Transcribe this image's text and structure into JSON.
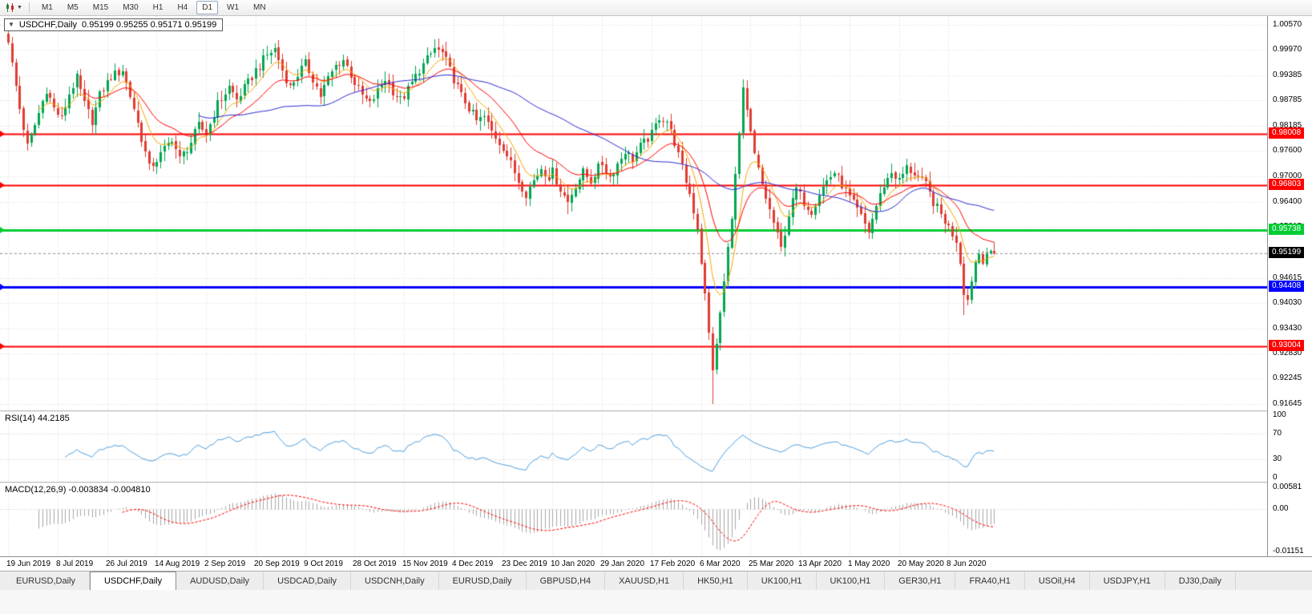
{
  "toolbar": {
    "timeframes": [
      "M1",
      "M5",
      "M15",
      "M30",
      "H1",
      "H4",
      "D1",
      "W1",
      "MN"
    ],
    "active_timeframe": "D1"
  },
  "chart_header": {
    "symbol_period": "USDCHF,Daily",
    "ohlc_text": "0.95199 0.95255 0.95171 0.95199"
  },
  "chart_data": {
    "type": "candlestick",
    "symbol": "USDCHF",
    "period": "Daily",
    "ohlc": {
      "open": "0.95199",
      "high": "0.95255",
      "low": "0.95171",
      "close": "0.95199"
    },
    "current_price": {
      "value": 0.95199,
      "label": "0.95199",
      "color": "#000000"
    },
    "price_range": {
      "min": 0.915,
      "max": 1.0077
    },
    "price_ticks": [
      "1.00570",
      "0.99970",
      "0.99385",
      "0.98785",
      "0.98185",
      "0.97600",
      "0.97000",
      "0.96400",
      "0.95815",
      "0.95215",
      "0.94615",
      "0.94030",
      "0.93430",
      "0.92830",
      "0.92245",
      "0.91645"
    ],
    "hlines": [
      {
        "price": 0.98008,
        "label": "0.98008",
        "color": "#FF0000",
        "width": 2
      },
      {
        "price": 0.96803,
        "label": "0.96803",
        "color": "#FF0000",
        "width": 2
      },
      {
        "price": 0.95738,
        "label": "0.95738",
        "color": "#00CC33",
        "width": 3
      },
      {
        "price": 0.94408,
        "label": "0.94408",
        "color": "#0000FF",
        "width": 3
      },
      {
        "price": 0.93004,
        "label": "0.93004",
        "color": "#FF0000",
        "width": 2
      }
    ],
    "date_labels": [
      "19 Jun 2019",
      "8 Jul 2019",
      "26 Jul 2019",
      "14 Aug 2019",
      "2 Sep 2019",
      "20 Sep 2019",
      "9 Oct 2019",
      "28 Oct 2019",
      "15 Nov 2019",
      "4 Dec 2019",
      "23 Dec 2019",
      "10 Jan 2020",
      "29 Jan 2020",
      "17 Feb 2020",
      "6 Mar 2020",
      "25 Mar 2020",
      "13 Apr 2020",
      "1 May 2020",
      "20 May 2020",
      "8 Jun 2020"
    ],
    "candles": {
      "count": 260,
      "waypoints": [
        [
          0,
          1.0015
        ],
        [
          3,
          0.986
        ],
        [
          5,
          0.977
        ],
        [
          7,
          0.982
        ],
        [
          10,
          0.9905
        ],
        [
          12,
          0.986
        ],
        [
          14,
          0.9835
        ],
        [
          16,
          0.9895
        ],
        [
          18,
          0.993
        ],
        [
          20,
          0.987
        ],
        [
          22,
          0.983
        ],
        [
          24,
          0.989
        ],
        [
          27,
          0.9935
        ],
        [
          30,
          0.995
        ],
        [
          33,
          0.986
        ],
        [
          35,
          0.979
        ],
        [
          37,
          0.972
        ],
        [
          40,
          0.975
        ],
        [
          43,
          0.979
        ],
        [
          45,
          0.974
        ],
        [
          48,
          0.978
        ],
        [
          50,
          0.982
        ],
        [
          52,
          0.98
        ],
        [
          55,
          0.987
        ],
        [
          58,
          0.991
        ],
        [
          60,
          0.988
        ],
        [
          63,
          0.992
        ],
        [
          65,
          0.995
        ],
        [
          68,
          0.9985
        ],
        [
          70,
          1.0
        ],
        [
          72,
          0.995
        ],
        [
          74,
          0.991
        ],
        [
          76,
          0.994
        ],
        [
          78,
          0.9965
        ],
        [
          80,
          0.993
        ],
        [
          82,
          0.989
        ],
        [
          84,
          0.993
        ],
        [
          86,
          0.996
        ],
        [
          88,
          0.9975
        ],
        [
          90,
          0.994
        ],
        [
          91,
          0.992
        ],
        [
          93,
          0.989
        ],
        [
          95,
          0.987
        ],
        [
          97,
          0.99
        ],
        [
          99,
          0.993
        ],
        [
          101,
          0.99
        ],
        [
          103,
          0.988
        ],
        [
          104,
          0.989
        ],
        [
          106,
          0.992
        ],
        [
          108,
          0.995
        ],
        [
          110,
          0.9975
        ],
        [
          112,
          1.0
        ],
        [
          114,
          0.999
        ],
        [
          116,
          0.995
        ],
        [
          117,
          0.993
        ],
        [
          119,
          0.989
        ],
        [
          121,
          0.986
        ],
        [
          123,
          0.983
        ],
        [
          125,
          0.984
        ],
        [
          127,
          0.9805
        ],
        [
          129,
          0.978
        ],
        [
          130,
          0.977
        ],
        [
          132,
          0.973
        ],
        [
          134,
          0.969
        ],
        [
          136,
          0.966
        ],
        [
          138,
          0.969
        ],
        [
          140,
          0.972
        ],
        [
          142,
          0.97
        ],
        [
          143,
          0.971
        ],
        [
          145,
          0.967
        ],
        [
          147,
          0.964
        ],
        [
          149,
          0.968
        ],
        [
          151,
          0.971
        ],
        [
          153,
          0.969
        ],
        [
          155,
          0.972
        ],
        [
          156,
          0.973
        ],
        [
          158,
          0.97
        ],
        [
          160,
          0.973
        ],
        [
          162,
          0.976
        ],
        [
          164,
          0.974
        ],
        [
          166,
          0.977
        ],
        [
          168,
          0.979
        ],
        [
          169,
          0.98
        ],
        [
          171,
          0.984
        ],
        [
          173,
          0.983
        ],
        [
          175,
          0.978
        ],
        [
          177,
          0.972
        ],
        [
          179,
          0.966
        ],
        [
          181,
          0.958
        ],
        [
          182,
          0.95
        ],
        [
          183,
          0.942
        ],
        [
          184,
          0.933
        ],
        [
          185,
          0.925
        ],
        [
          186,
          0.93
        ],
        [
          187,
          0.938
        ],
        [
          188,
          0.945
        ],
        [
          189,
          0.953
        ],
        [
          190,
          0.961
        ],
        [
          191,
          0.97
        ],
        [
          192,
          0.98
        ],
        [
          193,
          0.99
        ],
        [
          194,
          0.985
        ],
        [
          196,
          0.975
        ],
        [
          198,
          0.968
        ],
        [
          200,
          0.962
        ],
        [
          203,
          0.953
        ],
        [
          205,
          0.961
        ],
        [
          207,
          0.967
        ],
        [
          209,
          0.964
        ],
        [
          211,
          0.962
        ],
        [
          213,
          0.966
        ],
        [
          215,
          0.969
        ],
        [
          217,
          0.971
        ],
        [
          219,
          0.968
        ],
        [
          221,
          0.965
        ],
        [
          223,
          0.962
        ],
        [
          226,
          0.957
        ],
        [
          228,
          0.963
        ],
        [
          230,
          0.968
        ],
        [
          232,
          0.971
        ],
        [
          234,
          0.969
        ],
        [
          236,
          0.972
        ],
        [
          239,
          0.97
        ],
        [
          241,
          0.968
        ],
        [
          243,
          0.964
        ],
        [
          245,
          0.961
        ],
        [
          247,
          0.958
        ],
        [
          249,
          0.955
        ],
        [
          250,
          0.95
        ],
        [
          251,
          0.943
        ],
        [
          252,
          0.941
        ],
        [
          253,
          0.946
        ],
        [
          254,
          0.95
        ],
        [
          255,
          0.952
        ],
        [
          256,
          0.9505
        ],
        [
          257,
          0.9525
        ],
        [
          258,
          0.9515
        ],
        [
          259,
          0.95199
        ]
      ],
      "special_highs": {
        "0": 1.004,
        "68": 1.0008,
        "112": 1.0022,
        "193": 0.9915
      },
      "special_lows": {
        "136": 0.9645,
        "147": 0.9612,
        "185": 0.9165,
        "203": 0.9524,
        "226": 0.956,
        "251": 0.9375
      }
    },
    "moving_averages": [
      {
        "method": "ema",
        "period": 8,
        "color": "#F5A800"
      },
      {
        "method": "ema",
        "period": 20,
        "color": "#FF0000"
      },
      {
        "method": "sma",
        "period": 50,
        "color": "#2B2BD5"
      }
    ],
    "rsi": {
      "label": "RSI(14) 44.2185",
      "period": 14,
      "value": 44.2185,
      "ticks": [
        "100",
        "70",
        "30",
        "0"
      ],
      "tick_values": [
        100,
        70,
        30,
        0
      ],
      "levels": [
        70,
        30
      ],
      "color": "#4C9FE0"
    },
    "macd": {
      "label": "MACD(12,26,9) -0.003834 -0.004810",
      "fast": 12,
      "slow": 26,
      "signal": 9,
      "values": {
        "macd": -0.003834,
        "signal": -0.00481
      },
      "ticks": [
        {
          "value": 0.00581,
          "label": "0.00581"
        },
        {
          "value": 0,
          "label": "0.00"
        },
        {
          "value": -0.01151,
          "label": "-0.01151"
        }
      ],
      "range": {
        "min": -0.01151,
        "max": 0.00581
      },
      "hist_color": "#A6A6A6",
      "signal_color": "#FF0000"
    },
    "colors": {
      "background": "#FFFFFF",
      "grid": "#DADADA",
      "up": "#00A651",
      "down": "#E03C32",
      "current_dash": "#9A9A9A",
      "axis_border": "#8E8E8E"
    }
  },
  "tabs": {
    "active_index": 1,
    "items": [
      "EURUSD,Daily",
      "USDCHF,Daily",
      "AUDUSD,Daily",
      "USDCAD,Daily",
      "USDCNH,Daily",
      "EURUSD,Daily",
      "GBPUSD,H4",
      "XAUUSD,H1",
      "HK50,H1",
      "UK100,H1",
      "UK100,H1",
      "GER30,H1",
      "FRA40,H1",
      "USOil,H4",
      "USDJPY,H1",
      "DJ30,Daily"
    ]
  }
}
